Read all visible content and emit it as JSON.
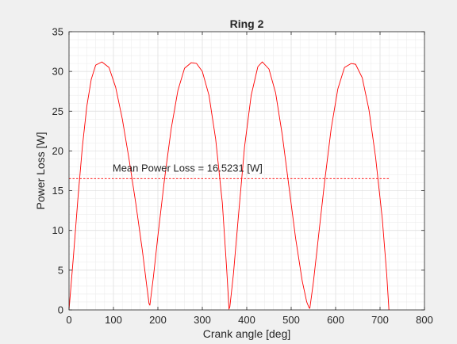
{
  "chart_data": {
    "type": "line",
    "title": "Ring 2",
    "xlabel": "Crank angle [deg]",
    "ylabel": "Power Loss [W]",
    "xlim": [
      0,
      800
    ],
    "ylim": [
      0,
      35
    ],
    "xticks": [
      0,
      100,
      200,
      300,
      400,
      500,
      600,
      700,
      800
    ],
    "yticks": [
      0,
      5,
      10,
      15,
      20,
      25,
      30,
      35
    ],
    "grid": true,
    "minor_grid": true,
    "series": [
      {
        "color": "#ff0000",
        "style": "solid",
        "x": [
          0,
          10,
          20,
          30,
          40,
          50,
          60,
          74,
          90,
          105,
          120,
          135,
          150,
          165,
          175,
          180,
          182,
          190,
          200,
          215,
          230,
          245,
          260,
          275,
          287,
          300,
          315,
          330,
          345,
          355,
          360,
          362,
          370,
          380,
          395,
          410,
          425,
          435,
          450,
          465,
          480,
          495,
          510,
          525,
          535,
          540,
          542,
          550,
          560,
          575,
          590,
          605,
          620,
          635,
          645,
          660,
          675,
          690,
          705,
          715,
          720
        ],
        "y": [
          0,
          6.8,
          14.0,
          20.5,
          25.6,
          29.0,
          30.8,
          31.2,
          30.5,
          28.0,
          24.0,
          19.0,
          13.5,
          7.5,
          3.0,
          0.8,
          0.6,
          4.2,
          9.3,
          16.5,
          22.8,
          27.6,
          30.4,
          31.1,
          31.0,
          30.0,
          27.0,
          21.5,
          13.5,
          5.0,
          0.1,
          0.4,
          4.5,
          11.0,
          20.5,
          27.0,
          30.6,
          31.2,
          30.3,
          27.3,
          22.0,
          15.5,
          9.0,
          3.6,
          1.0,
          0.3,
          0.2,
          3.5,
          8.5,
          16.0,
          22.8,
          27.8,
          30.5,
          31.0,
          30.9,
          29.2,
          25.2,
          19.2,
          11.5,
          4.5,
          0
        ]
      },
      {
        "color": "#ff0000",
        "style": "dashed",
        "x": [
          0,
          720
        ],
        "y": [
          16.5231,
          16.5231
        ]
      }
    ],
    "annotations": [
      {
        "text": "Mean Power Loss = 16.5231 [W]",
        "x": 98,
        "y": 17.4
      }
    ]
  }
}
